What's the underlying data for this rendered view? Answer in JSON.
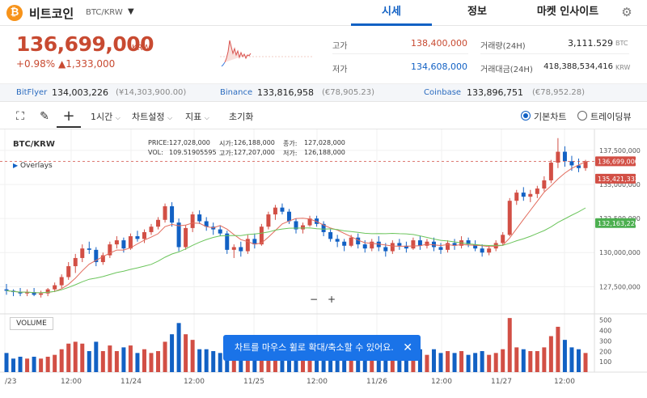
{
  "header": {
    "coin_icon": "bitcoin-icon",
    "coin_name": "비트코인",
    "pair": "BTC/KRW",
    "tabs": [
      "시세",
      "정보",
      "마켓 인사이트"
    ]
  },
  "ticker": {
    "price": "136,699,000",
    "unit": "KRW",
    "change_pct": "+0.98%",
    "change_abs": "▲1,333,000",
    "high_label": "고가",
    "high_value": "138,400,000",
    "low_label": "저가",
    "low_value": "134,608,000",
    "vol_label": "거래량(24H)",
    "vol_value": "3,111.529",
    "vol_unit": "BTC",
    "amt_label": "거래대금(24H)",
    "amt_value": "418,388,534,416",
    "amt_unit": "KRW"
  },
  "exchanges": [
    {
      "name": "BitFlyer",
      "value": "134,003,226",
      "foreign": "(¥14,303,900.00)"
    },
    {
      "name": "Binance",
      "value": "133,816,958",
      "foreign": "(€78,905.23)"
    },
    {
      "name": "Coinbase",
      "value": "133,896,751",
      "foreign": "(€78,952.28)"
    }
  ],
  "toolbar": {
    "interval": "1시간",
    "chart_settings": "차트설정",
    "indicators": "지표",
    "reset": "초기화",
    "basic_chart": "기본차트",
    "trading_view": "트레이딩뷰"
  },
  "chart_data": {
    "type": "candlestick",
    "pair_label": "BTC/KRW",
    "overlays_label": "Overlays",
    "ohlc": {
      "price_label": "PRICE:",
      "price": "127,028,000",
      "open_label": "시가:",
      "open": "126,188,000",
      "close_label": "종가:",
      "close": "127,028,000",
      "vol_label": "VOL:",
      "vol": "109.51905595",
      "high_label": "고가:",
      "high": "127,207,000",
      "low_label": "저가:",
      "low": "126,188,000"
    },
    "y_ticks": [
      "137,500,000",
      "135,000,000",
      "132,500,000",
      "130,000,000",
      "127,500,000"
    ],
    "y_range": [
      125500000,
      138800000
    ],
    "x_ticks": [
      "/23",
      "12:00",
      "11/24",
      "12:00",
      "11/25",
      "12:00",
      "11/26",
      "12:00",
      "11/27",
      "12:00"
    ],
    "price_tags": {
      "current": "136,699,000",
      "ma_short": "135,421,333",
      "ma_long": "132,163,220"
    },
    "candles": [
      [
        127.3,
        127.7,
        126.9,
        127.2
      ],
      [
        127.2,
        127.3,
        126.8,
        127.1
      ],
      [
        127.1,
        127.4,
        126.8,
        127.0
      ],
      [
        127.0,
        127.3,
        126.8,
        127.1
      ],
      [
        127.1,
        127.4,
        126.8,
        126.9
      ],
      [
        126.9,
        127.2,
        126.7,
        127.0
      ],
      [
        127.0,
        127.4,
        126.8,
        127.3
      ],
      [
        127.3,
        127.8,
        127.1,
        127.6
      ],
      [
        127.6,
        128.4,
        127.4,
        128.2
      ],
      [
        128.2,
        129.3,
        128.0,
        129.0
      ],
      [
        129.0,
        129.9,
        128.5,
        129.6
      ],
      [
        129.6,
        130.6,
        129.3,
        130.3
      ],
      [
        130.3,
        130.8,
        129.9,
        130.2
      ],
      [
        130.2,
        130.4,
        129.0,
        129.3
      ],
      [
        129.3,
        130.0,
        129.1,
        129.8
      ],
      [
        129.8,
        130.8,
        129.6,
        130.6
      ],
      [
        130.6,
        131.2,
        130.3,
        130.9
      ],
      [
        130.9,
        131.1,
        130.0,
        130.3
      ],
      [
        130.3,
        131.4,
        130.2,
        131.2
      ],
      [
        131.2,
        131.6,
        130.8,
        131.0
      ],
      [
        131.0,
        131.7,
        130.7,
        131.5
      ],
      [
        131.5,
        132.1,
        131.3,
        131.9
      ],
      [
        131.9,
        132.6,
        131.7,
        132.4
      ],
      [
        132.4,
        133.6,
        132.2,
        133.4
      ],
      [
        133.4,
        133.7,
        131.9,
        132.2
      ],
      [
        132.2,
        132.5,
        130.1,
        130.4
      ],
      [
        130.4,
        132.0,
        130.2,
        131.8
      ],
      [
        131.8,
        133.0,
        131.5,
        132.8
      ],
      [
        132.8,
        133.1,
        132.1,
        132.3
      ],
      [
        132.3,
        132.6,
        131.6,
        131.9
      ],
      [
        131.9,
        132.2,
        131.3,
        131.7
      ],
      [
        131.7,
        132.0,
        131.2,
        131.4
      ],
      [
        131.4,
        131.6,
        129.9,
        130.2
      ],
      [
        130.2,
        130.6,
        129.6,
        130.4
      ],
      [
        130.4,
        130.8,
        129.7,
        130.1
      ],
      [
        130.1,
        131.3,
        129.9,
        131.0
      ],
      [
        131.0,
        131.4,
        130.3,
        130.6
      ],
      [
        130.6,
        132.1,
        130.5,
        131.9
      ],
      [
        131.9,
        133.0,
        131.7,
        132.8
      ],
      [
        132.8,
        133.5,
        132.4,
        133.3
      ],
      [
        133.3,
        133.6,
        132.8,
        133.0
      ],
      [
        133.0,
        133.2,
        132.1,
        132.3
      ],
      [
        132.3,
        132.5,
        131.4,
        131.7
      ],
      [
        131.7,
        132.2,
        131.4,
        132.0
      ],
      [
        132.0,
        132.7,
        131.9,
        132.5
      ],
      [
        132.5,
        132.7,
        131.9,
        132.1
      ],
      [
        132.1,
        132.3,
        131.2,
        131.5
      ],
      [
        131.5,
        131.7,
        130.8,
        131.0
      ],
      [
        131.0,
        131.3,
        130.4,
        130.8
      ],
      [
        130.8,
        131.0,
        130.1,
        130.5
      ],
      [
        130.5,
        131.3,
        130.4,
        131.1
      ],
      [
        131.1,
        131.4,
        130.3,
        130.6
      ],
      [
        130.6,
        130.9,
        130.0,
        130.3
      ],
      [
        130.3,
        131.0,
        130.1,
        130.8
      ],
      [
        130.8,
        131.2,
        130.1,
        130.4
      ],
      [
        130.4,
        130.7,
        129.7,
        130.1
      ],
      [
        130.1,
        130.9,
        129.9,
        130.7
      ],
      [
        130.7,
        131.0,
        130.2,
        130.5
      ],
      [
        130.5,
        130.8,
        130.0,
        130.3
      ],
      [
        130.3,
        131.1,
        130.2,
        130.9
      ],
      [
        130.9,
        131.2,
        130.2,
        130.5
      ],
      [
        130.5,
        131.0,
        130.3,
        130.8
      ],
      [
        130.8,
        131.1,
        130.1,
        130.4
      ],
      [
        130.4,
        130.7,
        129.9,
        130.2
      ],
      [
        130.2,
        130.9,
        130.0,
        130.7
      ],
      [
        130.7,
        131.0,
        130.2,
        130.5
      ],
      [
        130.5,
        131.2,
        130.3,
        130.9
      ],
      [
        130.9,
        131.1,
        130.4,
        130.6
      ],
      [
        130.6,
        130.9,
        130.1,
        130.3
      ],
      [
        130.3,
        130.6,
        129.7,
        130.0
      ],
      [
        130.0,
        130.5,
        129.8,
        130.3
      ],
      [
        130.3,
        130.9,
        130.1,
        130.7
      ],
      [
        130.7,
        131.5,
        130.5,
        131.3
      ],
      [
        131.3,
        134.0,
        131.2,
        133.8
      ],
      [
        133.8,
        134.6,
        133.5,
        134.4
      ],
      [
        134.4,
        134.8,
        133.8,
        134.1
      ],
      [
        134.1,
        134.6,
        133.7,
        134.3
      ],
      [
        134.3,
        134.9,
        134.0,
        134.7
      ],
      [
        134.7,
        135.6,
        134.5,
        135.3
      ],
      [
        135.3,
        136.8,
        135.1,
        136.6
      ],
      [
        136.6,
        138.4,
        136.2,
        137.4
      ],
      [
        137.4,
        137.8,
        136.3,
        136.7
      ],
      [
        136.7,
        137.1,
        136.0,
        136.4
      ],
      [
        136.4,
        136.9,
        135.9,
        136.2
      ],
      [
        136.2,
        136.8,
        136.0,
        136.7
      ]
    ],
    "volume_ticks": [
      "500",
      "400",
      "300",
      "200",
      "100"
    ],
    "volume_label": "VOLUME"
  },
  "toast": {
    "message": "차트를 마우스 휠로 확대/축소할 수 있어요."
  }
}
